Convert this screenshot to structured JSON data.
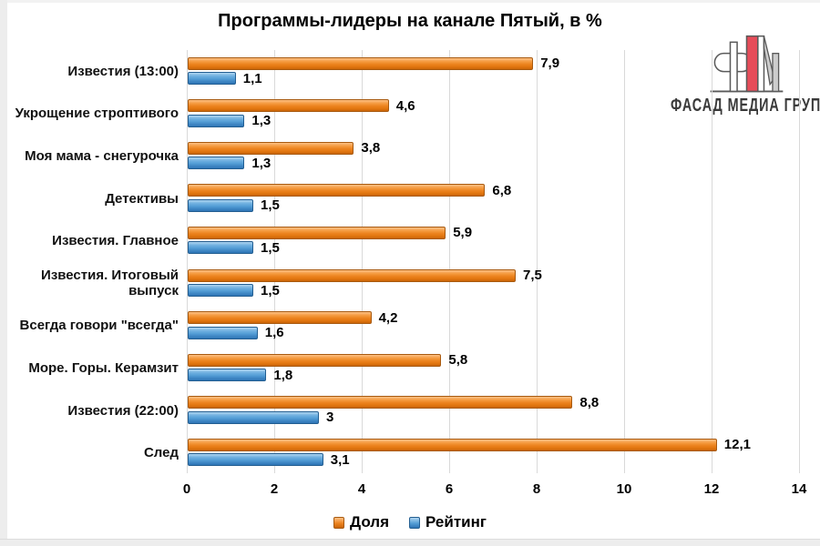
{
  "title": "Программы-лидеры на канале Пятый, в %",
  "logo": {
    "text": "ФАСАД МЕДИА ГРУПП",
    "accent_color": "#e64c59",
    "line_color": "#5a5a5a"
  },
  "chart_data": {
    "type": "bar",
    "orientation": "horizontal",
    "title": "Программы-лидеры на канале Пятый, в %",
    "categories": [
      "Известия (13:00)",
      "Укрощение строптивого",
      "Моя мама - снегурочка",
      "Детективы",
      "Известия. Главное",
      "Известия. Итоговый выпуск",
      "Всегда говори \"всегда\"",
      "Море. Горы. Керамзит",
      "Известия (22:00)",
      "След"
    ],
    "series": [
      {
        "name": "Доля",
        "color": "#e87d1e",
        "values": [
          7.9,
          4.6,
          3.8,
          6.8,
          5.9,
          7.5,
          4.2,
          5.8,
          8.8,
          12.1
        ],
        "labels": [
          "7,9",
          "4,6",
          "3,8",
          "6,8",
          "5,9",
          "7,5",
          "4,2",
          "5,8",
          "8,8",
          "12,1"
        ]
      },
      {
        "name": "Рейтинг",
        "color": "#4f9bd5",
        "values": [
          1.1,
          1.3,
          1.3,
          1.5,
          1.5,
          1.5,
          1.6,
          1.8,
          3,
          3.1
        ],
        "labels": [
          "1,1",
          "1,3",
          "1,3",
          "1,5",
          "1,5",
          "1,5",
          "1,6",
          "1,8",
          "3",
          "3,1"
        ]
      }
    ],
    "xlim": [
      0,
      14
    ],
    "xticks": [
      0,
      2,
      4,
      6,
      8,
      10,
      12,
      14
    ],
    "grid": "vertical",
    "legend_position": "bottom"
  }
}
